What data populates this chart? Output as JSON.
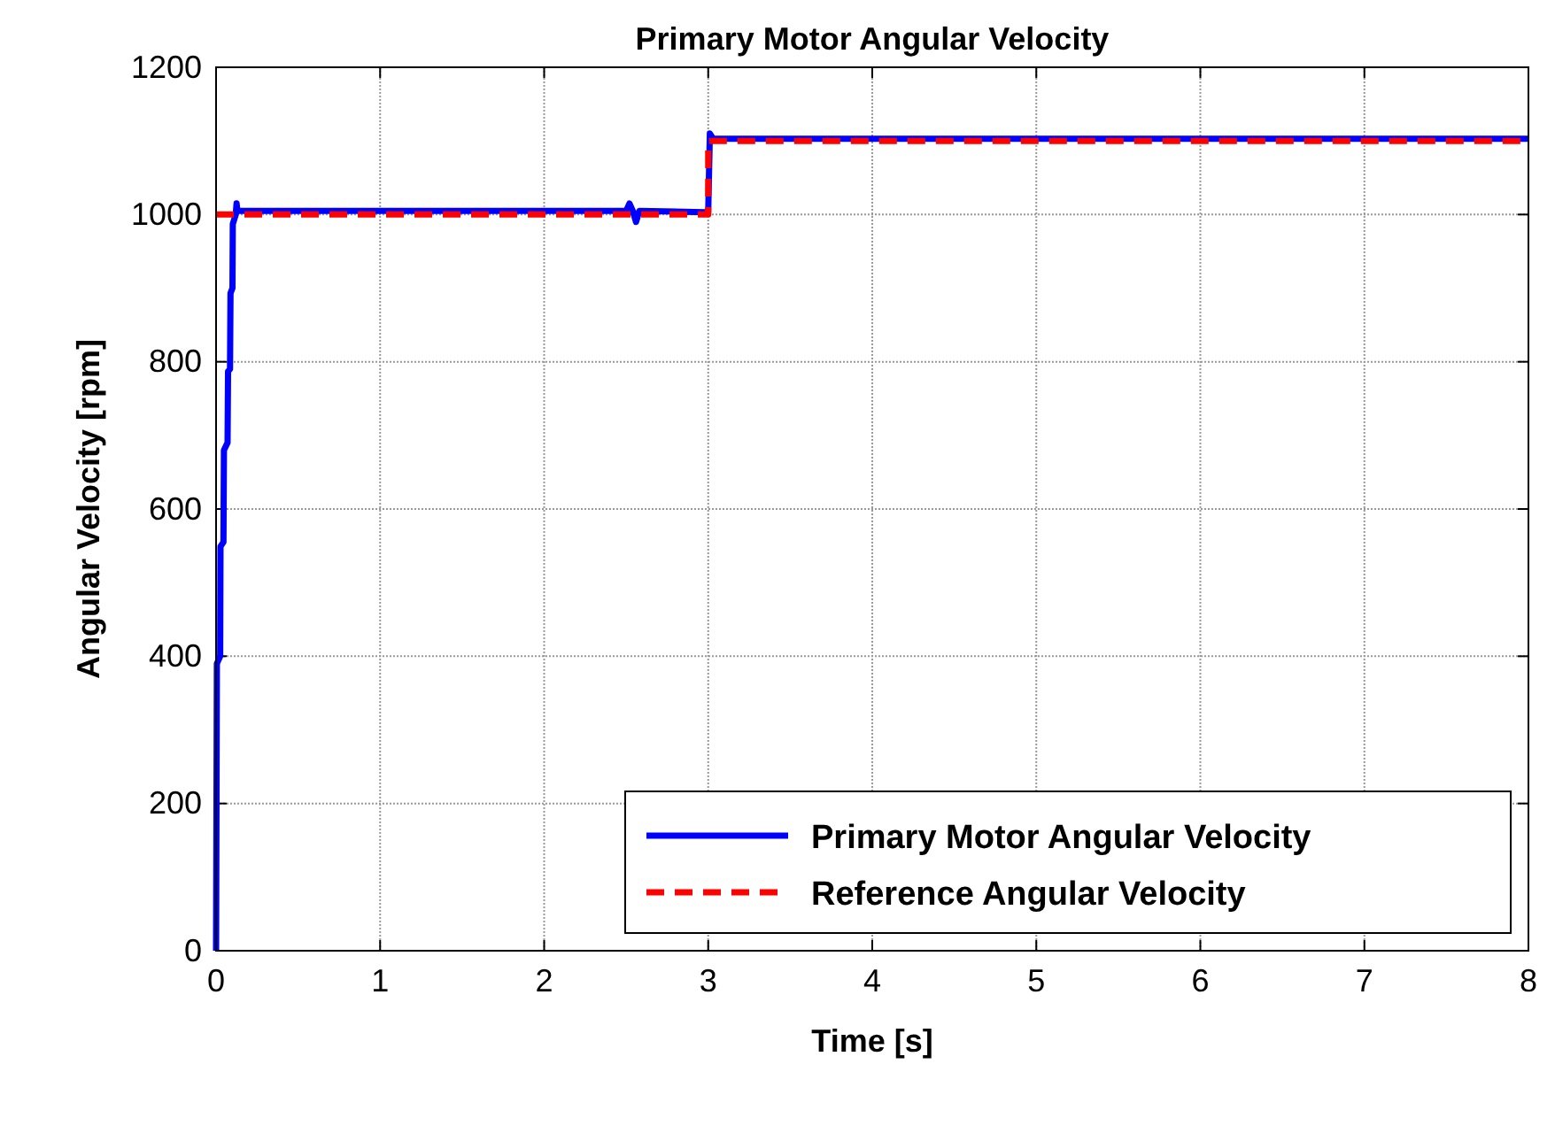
{
  "chart_data": {
    "type": "line",
    "title": "Primary Motor Angular Velocity",
    "xlabel": "Time [s]",
    "ylabel": "Angular Velocity [rpm]",
    "xlim": [
      0,
      8
    ],
    "xticks": [
      0,
      1,
      2,
      3,
      4,
      5,
      6,
      7,
      8
    ],
    "ylim": [
      0,
      1200
    ],
    "yticks": [
      0,
      200,
      400,
      600,
      800,
      1000,
      1200
    ],
    "grid": true,
    "legend": "bottom right",
    "marker": "none",
    "series": [
      {
        "name": "Primary Motor Angular Velocity",
        "color": "#0000ff",
        "line_style": "solid",
        "x": [
          0,
          0.005,
          0.025,
          0.027,
          0.045,
          0.048,
          0.07,
          0.073,
          0.085,
          0.088,
          0.1,
          0.102,
          0.12,
          0.125,
          0.13,
          2.5,
          2.52,
          2.54,
          2.56,
          2.58,
          2.98,
          3.0,
          3.01,
          3.03,
          8
        ],
        "values": [
          0,
          390,
          400,
          549,
          555,
          680,
          690,
          787,
          790,
          893,
          900,
          987,
          1000,
          1015,
          1005,
          1005,
          1015,
          1005,
          990,
          1005,
          1003,
          1003,
          1110,
          1103,
          1103
        ]
      },
      {
        "name": "Reference Angular Velocity",
        "color": "#ff0000",
        "line_style": "dashed",
        "x": [
          0,
          3,
          3,
          8
        ],
        "values": [
          1000,
          1000,
          1100,
          1100
        ]
      }
    ]
  }
}
